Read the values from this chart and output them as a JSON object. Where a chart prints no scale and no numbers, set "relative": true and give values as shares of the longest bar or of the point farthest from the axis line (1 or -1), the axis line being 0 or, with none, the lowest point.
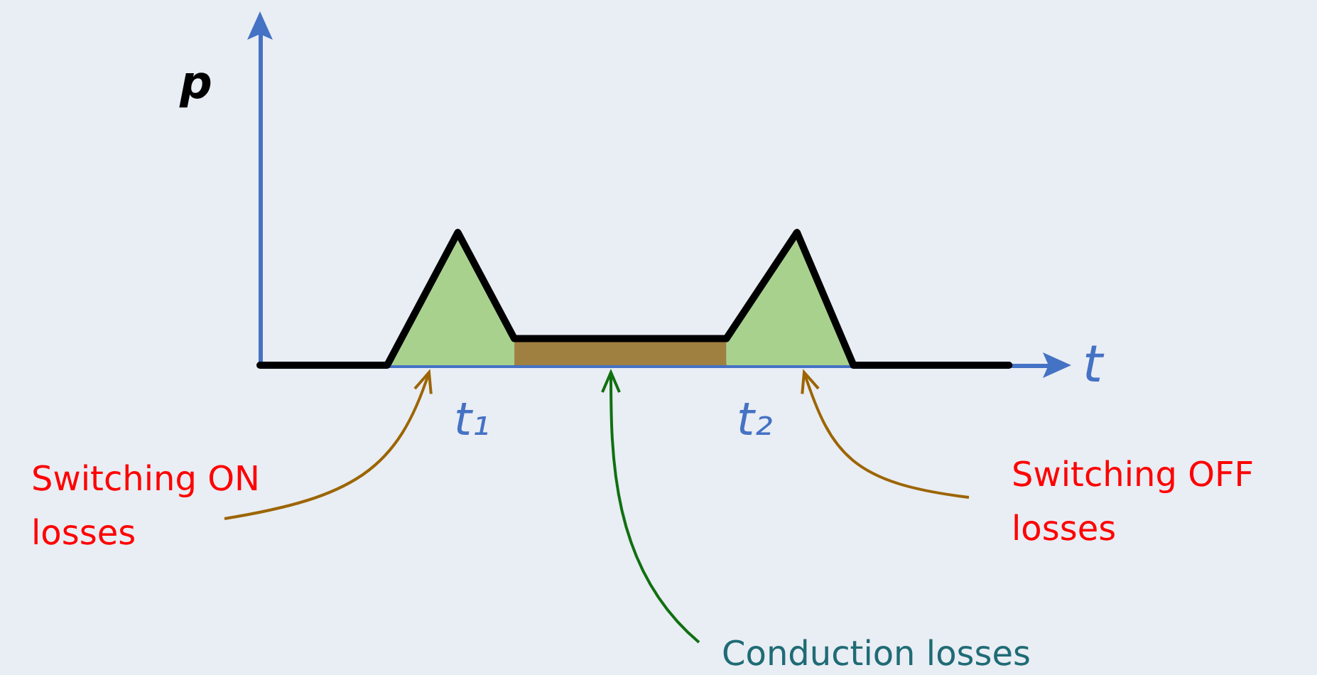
{
  "chart_data": {
    "type": "line",
    "relative": true,
    "ylabel": "p",
    "xlabel": "t",
    "categories": [
      null,
      null,
      null,
      null,
      null,
      null,
      null,
      null,
      null,
      null,
      null,
      null,
      null,
      null,
      null,
      "t₁",
      null,
      null,
      null,
      null,
      null,
      null,
      null,
      null,
      null,
      null,
      null,
      null,
      null,
      null,
      null,
      null,
      null,
      null,
      null,
      "t₂",
      null,
      null,
      null,
      null,
      null,
      null,
      null,
      null,
      null,
      null,
      null,
      null,
      null,
      null,
      null,
      null,
      null,
      null,
      null,
      null,
      null
    ],
    "series": [
      {
        "type": "area",
        "color": "#a9d18e",
        "values": [
          null,
          null,
          null,
          null,
          null,
          null,
          null,
          null,
          null,
          0,
          null,
          null,
          null,
          null,
          1,
          null,
          null,
          null,
          0.2,
          null,
          null,
          null,
          null,
          null,
          null,
          null,
          null,
          null,
          null,
          null,
          null,
          null,
          null,
          null,
          null,
          null,
          null,
          null,
          null,
          null,
          null,
          null,
          null,
          null,
          null,
          null,
          null,
          null,
          null,
          null,
          null,
          null,
          null,
          null,
          null,
          null,
          null
        ]
      },
      {
        "type": "area",
        "color": "#a9d18e",
        "values": [
          null,
          null,
          null,
          null,
          null,
          null,
          null,
          null,
          null,
          null,
          null,
          null,
          null,
          null,
          null,
          null,
          null,
          null,
          null,
          null,
          null,
          null,
          null,
          null,
          null,
          null,
          null,
          null,
          null,
          null,
          null,
          null,
          null,
          0.2,
          null,
          null,
          null,
          null,
          1,
          null,
          null,
          null,
          0,
          null,
          null,
          null,
          null,
          null,
          null,
          null,
          null,
          null,
          null,
          null,
          null,
          null,
          null
        ]
      },
      {
        "type": "area",
        "color": "#a08040",
        "values": [
          null,
          null,
          null,
          null,
          null,
          null,
          null,
          null,
          null,
          null,
          null,
          null,
          null,
          null,
          null,
          null,
          null,
          null,
          0.2,
          null,
          null,
          null,
          null,
          null,
          null,
          null,
          null,
          null,
          null,
          null,
          null,
          null,
          null,
          0.2,
          null,
          null,
          null,
          null,
          null,
          null,
          null,
          null,
          null,
          null,
          null,
          null,
          null,
          null,
          null,
          null,
          null,
          null,
          null,
          null,
          null,
          null,
          null
        ]
      },
      {
        "color": "#000000",
        "values": [
          0,
          null,
          null,
          null,
          null,
          null,
          null,
          null,
          null,
          0,
          null,
          null,
          null,
          null,
          1,
          null,
          null,
          null,
          0.2,
          null,
          null,
          null,
          null,
          null,
          null,
          null,
          null,
          null,
          null,
          null,
          null,
          null,
          null,
          0.2,
          null,
          null,
          null,
          null,
          1,
          null,
          null,
          null,
          0,
          null,
          null,
          null,
          null,
          null,
          null,
          null,
          null,
          null,
          null,
          0,
          null,
          null,
          null
        ]
      }
    ],
    "annotations": [
      "Switching ON losses",
      "Conduction losses",
      "Switching OFF losses"
    ],
    "marker": "none",
    "grid": false
  }
}
